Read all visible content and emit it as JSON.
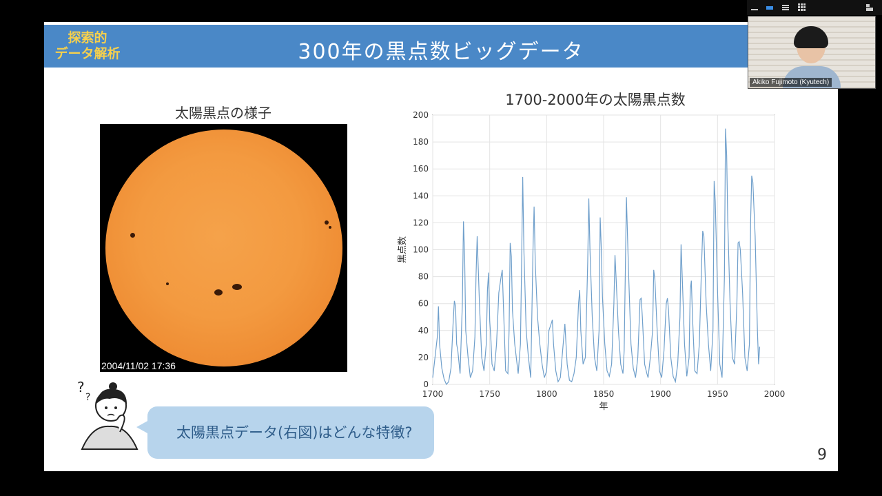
{
  "slide": {
    "tag": "探索的\nデータ解析",
    "title": "300年の黒点数ビッグデータ",
    "page_number": "9"
  },
  "sun_panel": {
    "caption": "太陽黒点の様子",
    "timestamp": "2004/11/02 17:36"
  },
  "question": {
    "text": "太陽黒点データ(右図)はどんな特徴?"
  },
  "video": {
    "participant_name": "Akiko Fujimoto (Kyutech)"
  },
  "colors": {
    "header_blue": "#4a88c7",
    "tag_yellow": "#f6d04d",
    "line_blue": "#6f9fcb",
    "bubble_blue": "#b7d4ec"
  },
  "icons": [
    "minimize-icon",
    "active-speaker-icon",
    "view-menu-icon",
    "gallery-icon",
    "exit-fullscreen-icon",
    "question-marks-icon"
  ],
  "chart_data": {
    "type": "line",
    "title": "1700-2000年の太陽黒点数",
    "xlabel": "年",
    "ylabel": "黒点数",
    "xlim": [
      1700,
      2000
    ],
    "ylim": [
      0,
      200
    ],
    "xticks": [
      1700,
      1750,
      1800,
      1850,
      1900,
      1950,
      2000
    ],
    "yticks": [
      0,
      20,
      40,
      60,
      80,
      100,
      120,
      140,
      160,
      180,
      200
    ],
    "grid": true,
    "series": [
      {
        "x": [
          1700,
          1702,
          1704,
          1705,
          1706,
          1708,
          1710,
          1712,
          1714,
          1716,
          1718,
          1719,
          1720,
          1721,
          1722,
          1724,
          1726,
          1727,
          1728,
          1729,
          1731,
          1733,
          1735,
          1737,
          1738,
          1739,
          1741,
          1743,
          1745,
          1747,
          1748,
          1749,
          1750,
          1751,
          1752,
          1754,
          1756,
          1758,
          1760,
          1761,
          1762,
          1764,
          1766,
          1767,
          1768,
          1769,
          1770,
          1772,
          1775,
          1777,
          1778,
          1779,
          1780,
          1782,
          1784,
          1786,
          1787,
          1788,
          1789,
          1790,
          1792,
          1794,
          1796,
          1798,
          1800,
          1802,
          1804,
          1805,
          1806,
          1808,
          1810,
          1812,
          1814,
          1816,
          1817,
          1818,
          1820,
          1822,
          1824,
          1826,
          1828,
          1829,
          1830,
          1832,
          1834,
          1836,
          1837,
          1838,
          1840,
          1842,
          1844,
          1846,
          1847,
          1848,
          1849,
          1851,
          1853,
          1855,
          1857,
          1859,
          1860,
          1861,
          1863,
          1865,
          1867,
          1868,
          1870,
          1871,
          1872,
          1874,
          1876,
          1878,
          1880,
          1882,
          1883,
          1884,
          1886,
          1888,
          1889,
          1891,
          1893,
          1894,
          1895,
          1897,
          1899,
          1901,
          1903,
          1905,
          1906,
          1907,
          1909,
          1911,
          1913,
          1915,
          1917,
          1918,
          1919,
          1921,
          1923,
          1925,
          1926,
          1927,
          1928,
          1930,
          1932,
          1934,
          1936,
          1937,
          1938,
          1940,
          1942,
          1944,
          1946,
          1947,
          1948,
          1950,
          1952,
          1954,
          1956,
          1957,
          1958,
          1959,
          1961,
          1963,
          1965,
          1967,
          1968,
          1969,
          1970,
          1972,
          1974,
          1976,
          1978,
          1979,
          1980,
          1981,
          1983,
          1985,
          1986,
          1987
        ],
        "values": [
          5,
          20,
          35,
          58,
          30,
          12,
          4,
          0,
          2,
          12,
          48,
          62,
          58,
          30,
          25,
          8,
          60,
          121,
          95,
          40,
          20,
          5,
          10,
          35,
          80,
          110,
          60,
          20,
          10,
          30,
          70,
          83,
          47,
          35,
          15,
          10,
          30,
          68,
          80,
          85,
          60,
          10,
          8,
          40,
          105,
          95,
          55,
          30,
          8,
          30,
          90,
          154,
          100,
          40,
          20,
          5,
          50,
          100,
          132,
          90,
          50,
          30,
          15,
          5,
          10,
          40,
          45,
          48,
          30,
          10,
          2,
          5,
          25,
          45,
          30,
          15,
          3,
          2,
          8,
          20,
          60,
          70,
          40,
          15,
          20,
          90,
          138,
          100,
          50,
          20,
          10,
          40,
          124,
          100,
          65,
          30,
          10,
          6,
          15,
          60,
          96,
          78,
          40,
          15,
          8,
          25,
          139,
          110,
          80,
          30,
          12,
          5,
          20,
          63,
          64,
          50,
          15,
          8,
          5,
          20,
          40,
          85,
          78,
          40,
          10,
          5,
          25,
          60,
          64,
          55,
          20,
          6,
          2,
          15,
          50,
          104,
          80,
          30,
          6,
          20,
          70,
          77,
          50,
          10,
          8,
          30,
          90,
          114,
          110,
          60,
          30,
          10,
          40,
          151,
          136,
          70,
          15,
          5,
          80,
          190,
          170,
          120,
          60,
          20,
          15,
          60,
          105,
          106,
          100,
          68,
          20,
          10,
          30,
          120,
          155,
          150,
          110,
          40,
          15,
          28
        ]
      }
    ]
  }
}
